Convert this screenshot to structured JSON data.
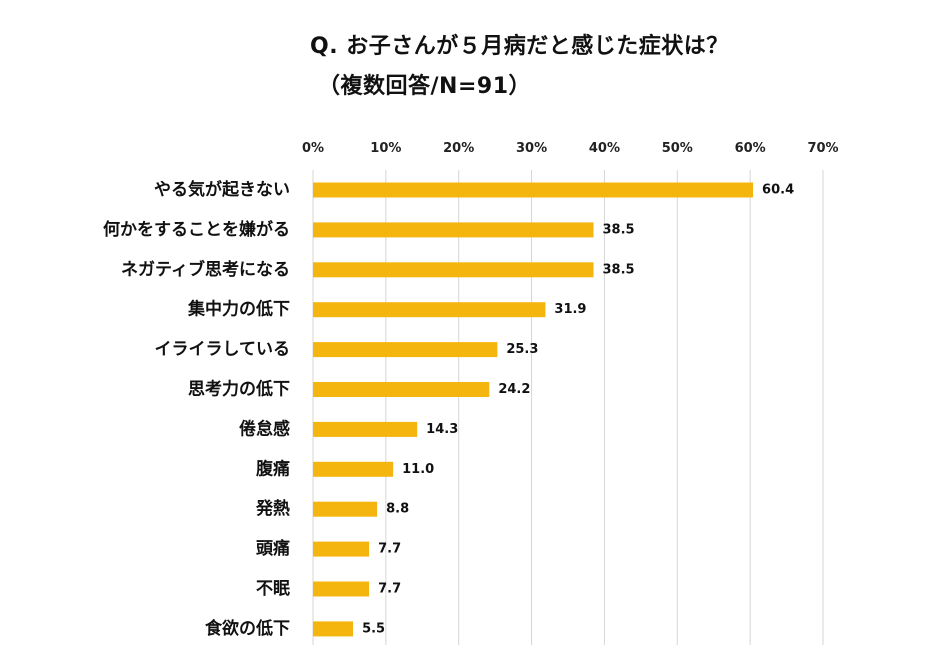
{
  "chart_data": {
    "type": "bar",
    "orientation": "horizontal",
    "title": "Q. お子さんが５月病だと感じた症状は？",
    "subtitle": "（複数回答/N=91）",
    "categories": [
      "やる気が起きない",
      "何かをすることを嫌がる",
      "ネガティブ思考になる",
      "集中力の低下",
      "イライラしている",
      "思考力の低下",
      "倦怠感",
      "腹痛",
      "発熱",
      "頭痛",
      "不眠",
      "食欲の低下"
    ],
    "values": [
      60.4,
      38.5,
      38.5,
      31.9,
      25.3,
      24.2,
      14.3,
      11.0,
      8.8,
      7.7,
      7.7,
      5.5
    ],
    "value_labels": [
      "60.4",
      "38.5",
      "38.5",
      "31.9",
      "25.3",
      "24.2",
      "14.3",
      "11.0",
      "8.8",
      "7.7",
      "7.7",
      "5.5"
    ],
    "xticks": [
      0,
      10,
      20,
      30,
      40,
      50,
      60,
      70
    ],
    "xtick_labels": [
      "0%",
      "10%",
      "20%",
      "30%",
      "40%",
      "50%",
      "60%",
      "70%"
    ],
    "xlim": [
      0,
      70
    ],
    "xaxis_position": "top",
    "grid": true,
    "legend": "none",
    "xlabel": "",
    "ylabel": "",
    "colors": {
      "bar": "#F5B50F",
      "grid": "#D6D6D6",
      "text": "#111111"
    }
  }
}
